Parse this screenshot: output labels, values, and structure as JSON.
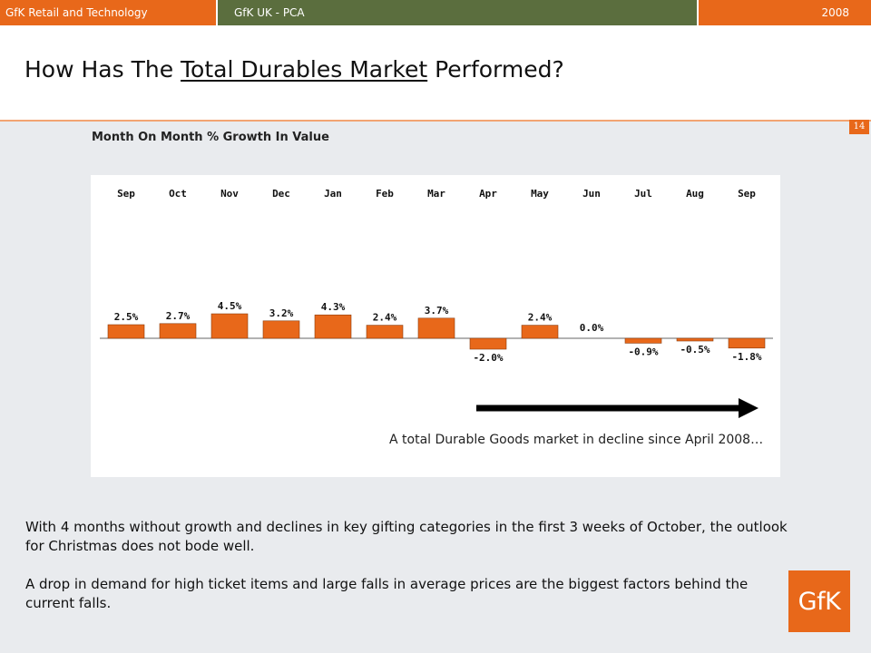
{
  "header": {
    "company": "GfK Retail and Technology",
    "section": "GfK UK - PCA",
    "year": "2008"
  },
  "slide": {
    "title_prefix": "How Has The ",
    "title_underlined": "Total Durables Market",
    "title_suffix": " Performed?",
    "page_number": "14",
    "logo_text": "GfK"
  },
  "chart_data": {
    "type": "bar",
    "title": "Month On Month % Growth In Value",
    "categories": [
      "Sep",
      "Oct",
      "Nov",
      "Dec",
      "Jan",
      "Feb",
      "Mar",
      "Apr",
      "May",
      "Jun",
      "Jul",
      "Aug",
      "Sep"
    ],
    "values": [
      2.5,
      2.7,
      4.5,
      3.2,
      4.3,
      2.4,
      3.7,
      -2.0,
      2.4,
      0.0,
      -0.9,
      -0.5,
      -1.8
    ],
    "data_labels": [
      "2.5%",
      "2.7%",
      "4.5%",
      "3.2%",
      "4.3%",
      "2.4%",
      "3.7%",
      "-2.0%",
      "2.4%",
      "0.0%",
      "-0.9%",
      "-0.5%",
      "-1.8%"
    ],
    "bar_color": "#e8681a",
    "annotation": "A total Durable Goods market in decline since April 2008…",
    "grid": false
  },
  "text": {
    "paragraph1": "With 4 months without growth and declines in key gifting categories in the first 3 weeks of October, the outlook for Christmas does not bode well.",
    "paragraph2": "A drop in demand for high ticket items and large falls in average prices are the biggest factors behind the current falls."
  }
}
